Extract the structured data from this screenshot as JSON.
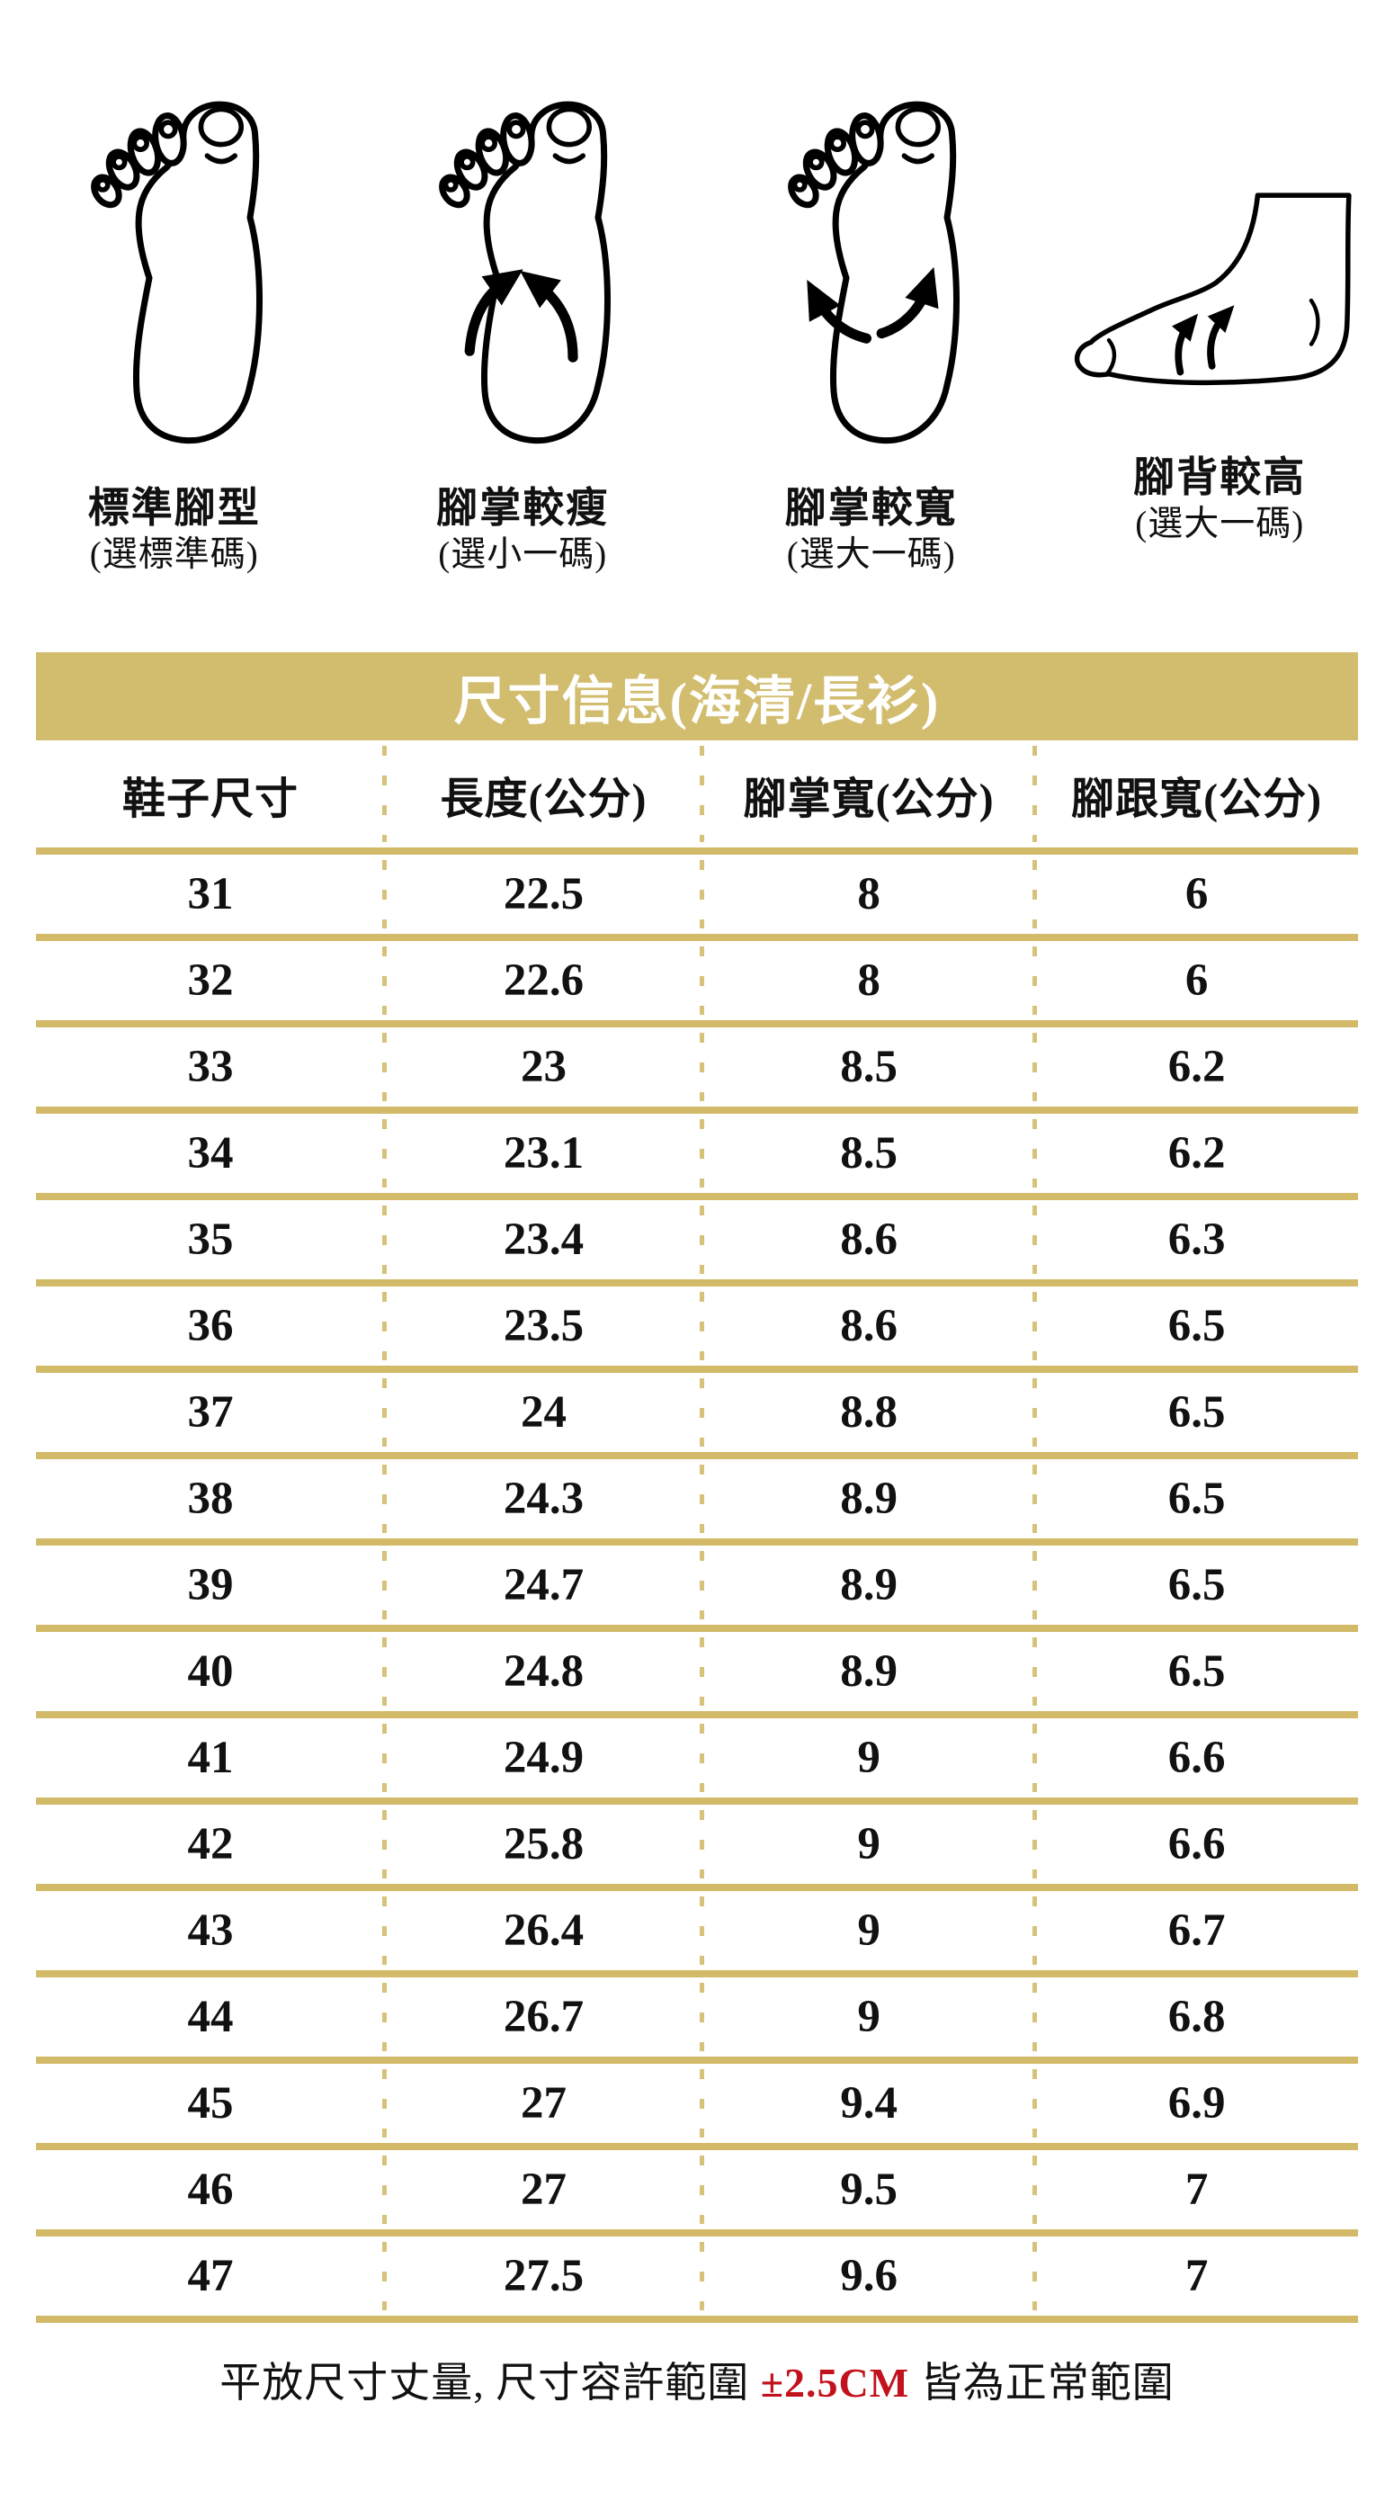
{
  "foot_guide": {
    "items": [
      {
        "icon": "foot-standard-icon",
        "title": "標準腳型",
        "subtitle": "(選標準碼)"
      },
      {
        "icon": "foot-narrow-icon",
        "title": "腳掌較瘦",
        "subtitle": "(選小一碼)"
      },
      {
        "icon": "foot-wide-icon",
        "title": "腳掌較寬",
        "subtitle": "(選大一碼)"
      },
      {
        "icon": "foot-high-instep-icon",
        "title": "腳背較高",
        "subtitle": "(選大一碼)"
      }
    ]
  },
  "size_table": {
    "title": "尺寸信息(海清/長衫)",
    "columns": [
      "鞋子尺寸",
      "長度(公分)",
      "腳掌寬(公分)",
      "腳跟寬(公分)"
    ],
    "rows": [
      [
        "31",
        "22.5",
        "8",
        "6"
      ],
      [
        "32",
        "22.6",
        "8",
        "6"
      ],
      [
        "33",
        "23",
        "8.5",
        "6.2"
      ],
      [
        "34",
        "23.1",
        "8.5",
        "6.2"
      ],
      [
        "35",
        "23.4",
        "8.6",
        "6.3"
      ],
      [
        "36",
        "23.5",
        "8.6",
        "6.5"
      ],
      [
        "37",
        "24",
        "8.8",
        "6.5"
      ],
      [
        "38",
        "24.3",
        "8.9",
        "6.5"
      ],
      [
        "39",
        "24.7",
        "8.9",
        "6.5"
      ],
      [
        "40",
        "24.8",
        "8.9",
        "6.5"
      ],
      [
        "41",
        "24.9",
        "9",
        "6.6"
      ],
      [
        "42",
        "25.8",
        "9",
        "6.6"
      ],
      [
        "43",
        "26.4",
        "9",
        "6.7"
      ],
      [
        "44",
        "26.7",
        "9",
        "6.8"
      ],
      [
        "45",
        "27",
        "9.4",
        "6.9"
      ],
      [
        "46",
        "27",
        "9.5",
        "7"
      ],
      [
        "47",
        "27.5",
        "9.6",
        "7"
      ]
    ]
  },
  "note": {
    "prefix": "平放尺寸丈量, 尺寸容許範圍 ",
    "highlight": "±2.5CM",
    "suffix": " 皆為正常範圍"
  },
  "colors": {
    "gold_band": "#d2bd6f",
    "gold_line": "#d2ba68",
    "gold_dash": "#d6c278",
    "highlight_red": "#c2121e",
    "text": "#111111",
    "band_text": "#ffffff"
  }
}
